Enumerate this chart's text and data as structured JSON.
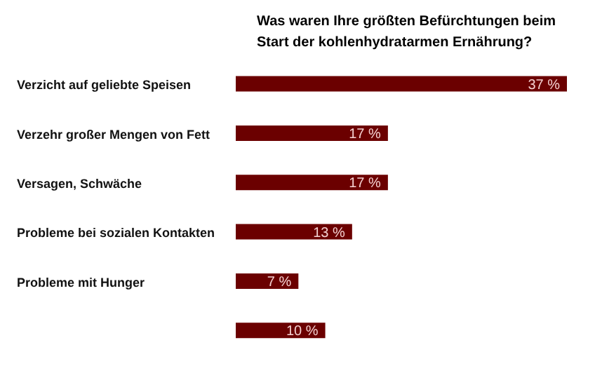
{
  "chart_data": {
    "type": "bar",
    "orientation": "horizontal",
    "title": "Was waren Ihre größten Befürchtungen beim Start der kohlenhydratarmen Ernährung?",
    "categories": [
      "Verzicht auf geliebte Speisen",
      "Verzehr großer Mengen von Fett",
      "Versagen, Schwäche",
      "Probleme bei sozialen Kontakten",
      "Probleme mit Hunger",
      null
    ],
    "values": [
      37,
      17,
      17,
      13,
      7,
      10
    ],
    "value_labels": [
      "37 %",
      "17 %",
      "17 %",
      "13 %",
      "7 %",
      "10 %"
    ],
    "color": "#6b0000",
    "tick_labels": false
  }
}
